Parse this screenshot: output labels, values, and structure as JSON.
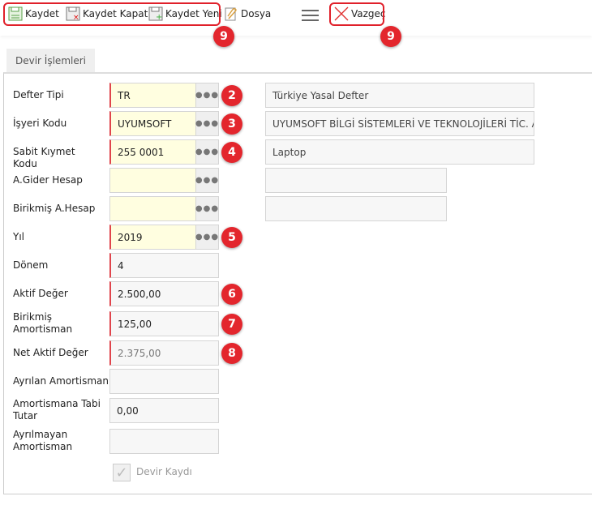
{
  "toolbar": {
    "save": "Kaydet",
    "save_close": "Kaydet Kapat",
    "save_new": "Kaydet Yeni",
    "file": "Dosya",
    "cancel": "Vazgeç",
    "badge_left": "9",
    "badge_right": "9"
  },
  "tab": "Devir İşlemleri",
  "rows": [
    {
      "label": "Defter Tipi",
      "value": "TR",
      "required": true,
      "lookup": true,
      "badge": "2",
      "desc": "Türkiye Yasal Defter"
    },
    {
      "label": "İşyeri Kodu",
      "value": "UYUMSOFT",
      "required": true,
      "lookup": true,
      "badge": "3",
      "desc": "UYUMSOFT BİLGİ SİSTEMLERİ VE TEKNOLOJİLERİ TİC. A"
    },
    {
      "label": "Sabit Kıymet Kodu",
      "value": "255 0001",
      "required": true,
      "lookup": true,
      "badge": "4",
      "desc": "Laptop"
    },
    {
      "label": "A.Gider Hesap",
      "value": "",
      "required": false,
      "lookup": true,
      "desc": ""
    },
    {
      "label": "Birikmiş A.Hesap",
      "value": "",
      "required": false,
      "lookup": true,
      "desc": ""
    },
    {
      "label": "Yıl",
      "value": "2019",
      "required": true,
      "lookup": true,
      "badge": "5"
    },
    {
      "label": "Dönem",
      "value": "4",
      "required": true
    },
    {
      "label": "Aktif Değer",
      "value": "2.500,00",
      "required": true,
      "badge": "6"
    },
    {
      "label": "Birikmiş Amortisman",
      "value": "125,00",
      "required": true,
      "badge": "7"
    },
    {
      "label": "Net Aktif Değer",
      "value": "2.375,00",
      "required": true,
      "readonly": true,
      "badge": "8"
    },
    {
      "label": "Ayrılan Amortisman",
      "value": ""
    },
    {
      "label": "Amortismana Tabi Tutar",
      "value": "0,00"
    },
    {
      "label": "Ayrılmayan Amortisman",
      "value": ""
    }
  ],
  "checkbox": {
    "label": "Devir Kaydı",
    "checked": true,
    "disabled": true
  },
  "colors": {
    "highlight": "#e0202a",
    "badge": "#e3262d",
    "required_border": "#e0454c",
    "lookup_bg": "#fffee0"
  }
}
